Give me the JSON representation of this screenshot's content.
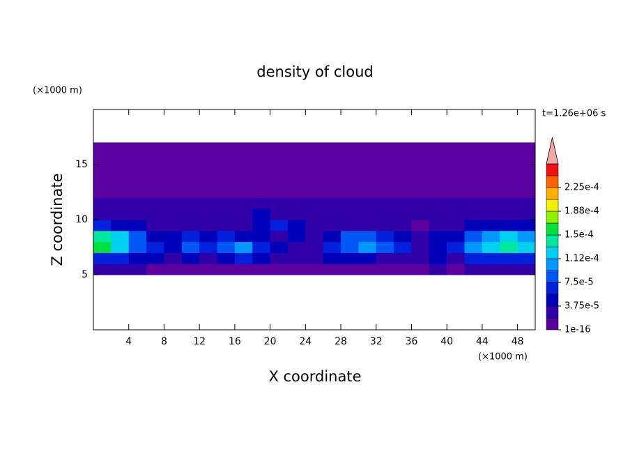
{
  "chart_data": {
    "type": "contour",
    "title": "density of cloud",
    "xlabel": "X coordinate",
    "ylabel": "Z coordinate",
    "x_unit": "(×1000 m)",
    "y_unit": "(×1000 m)",
    "annotation": "t=1.26e+06 s",
    "xlim": [
      0,
      50
    ],
    "ylim": [
      0,
      20
    ],
    "xticks": [
      4,
      8,
      12,
      16,
      20,
      24,
      28,
      32,
      36,
      40,
      44,
      48
    ],
    "yticks": [
      5,
      10,
      15
    ],
    "xbins": [
      0,
      2,
      4,
      6,
      8,
      10,
      12,
      14,
      16,
      18,
      20,
      22,
      24,
      26,
      28,
      30,
      32,
      34,
      36,
      38,
      40,
      42,
      44,
      46,
      48,
      50
    ],
    "zbins": [
      5,
      6,
      7,
      8,
      9,
      10,
      11,
      12,
      13,
      14,
      15,
      16,
      17
    ],
    "z": [
      [
        2e-05,
        2e-05,
        2e-05,
        1e-05,
        1e-05,
        1e-05,
        1e-05,
        1e-05,
        1e-05,
        1e-05,
        1e-05,
        1e-05,
        1e-05,
        1e-05,
        1e-05,
        1e-05,
        1e-05,
        1e-05,
        1e-05,
        2e-05,
        1e-05,
        2e-05,
        2e-05,
        2e-05,
        2e-05
      ],
      [
        7e-05,
        6e-05,
        5e-05,
        4e-05,
        3e-05,
        4e-05,
        3e-05,
        5e-05,
        6e-05,
        4e-05,
        3e-05,
        2e-05,
        2e-05,
        4e-05,
        5e-05,
        4e-05,
        3e-05,
        3e-05,
        2e-05,
        4e-05,
        3e-05,
        6e-05,
        7e-05,
        7e-05,
        7e-05
      ],
      [
        0.00015,
        0.00013,
        9e-05,
        6e-05,
        5e-05,
        8e-05,
        7e-05,
        9e-05,
        0.0001,
        6e-05,
        4e-05,
        3e-05,
        3e-05,
        7e-05,
        9e-05,
        0.0001,
        9e-05,
        6e-05,
        2e-05,
        5e-05,
        6e-05,
        0.0001,
        0.00013,
        0.00014,
        0.00012
      ],
      [
        0.00014,
        0.00012,
        8e-05,
        5e-05,
        4e-05,
        6e-05,
        5e-05,
        6e-05,
        5e-05,
        4e-05,
        3e-05,
        4e-05,
        3e-05,
        5e-05,
        8e-05,
        9e-05,
        7e-05,
        5e-05,
        2e-05,
        4e-05,
        5e-05,
        8e-05,
        0.00011,
        0.00012,
        0.0001
      ],
      [
        6e-05,
        5e-05,
        4e-05,
        3e-05,
        2e-05,
        2e-05,
        3e-05,
        2e-05,
        3e-05,
        5e-05,
        6e-05,
        4e-05,
        2e-05,
        3e-05,
        2e-05,
        3e-05,
        2e-05,
        2e-05,
        1e-05,
        2e-05,
        3e-05,
        4e-05,
        4e-05,
        5e-05,
        5e-05
      ],
      [
        3e-05,
        2e-05,
        2e-05,
        2e-05,
        2e-05,
        2e-05,
        2e-05,
        2e-05,
        2e-05,
        4e-05,
        3e-05,
        2e-05,
        2e-05,
        2e-05,
        2e-05,
        2e-05,
        2e-05,
        2e-05,
        2e-05,
        2e-05,
        2e-05,
        3e-05,
        2e-05,
        3e-05,
        3e-05
      ],
      [
        2e-05,
        2e-05,
        2e-05,
        2e-05,
        2e-05,
        2e-05,
        2e-05,
        2e-05,
        2e-05,
        2e-05,
        2e-05,
        2e-05,
        2e-05,
        2e-05,
        2e-05,
        2e-05,
        2e-05,
        2e-05,
        2e-05,
        2e-05,
        2e-05,
        2e-05,
        2e-05,
        2e-05,
        2e-05
      ],
      [
        5e-06,
        5e-06,
        5e-06,
        5e-06,
        5e-06,
        5e-06,
        5e-06,
        5e-06,
        5e-06,
        5e-06,
        5e-06,
        5e-06,
        5e-06,
        5e-06,
        5e-06,
        5e-06,
        5e-06,
        5e-06,
        5e-06,
        5e-06,
        5e-06,
        5e-06,
        5e-06,
        5e-06,
        5e-06
      ],
      [
        5e-06,
        5e-06,
        5e-06,
        5e-06,
        5e-06,
        5e-06,
        5e-06,
        5e-06,
        5e-06,
        5e-06,
        5e-06,
        5e-06,
        5e-06,
        5e-06,
        5e-06,
        5e-06,
        5e-06,
        5e-06,
        5e-06,
        5e-06,
        5e-06,
        5e-06,
        5e-06,
        5e-06,
        5e-06
      ],
      [
        5e-06,
        5e-06,
        5e-06,
        5e-06,
        5e-06,
        5e-06,
        5e-06,
        5e-06,
        5e-06,
        5e-06,
        5e-06,
        5e-06,
        5e-06,
        5e-06,
        5e-06,
        5e-06,
        5e-06,
        5e-06,
        5e-06,
        5e-06,
        5e-06,
        5e-06,
        5e-06,
        5e-06,
        5e-06
      ],
      [
        5e-06,
        5e-06,
        5e-06,
        5e-06,
        5e-06,
        5e-06,
        5e-06,
        5e-06,
        5e-06,
        5e-06,
        5e-06,
        5e-06,
        5e-06,
        5e-06,
        5e-06,
        5e-06,
        5e-06,
        5e-06,
        5e-06,
        5e-06,
        5e-06,
        5e-06,
        5e-06,
        5e-06,
        5e-06
      ],
      [
        5e-06,
        5e-06,
        5e-06,
        5e-06,
        5e-06,
        5e-06,
        5e-06,
        5e-06,
        5e-06,
        5e-06,
        5e-06,
        5e-06,
        5e-06,
        5e-06,
        5e-06,
        5e-06,
        5e-06,
        5e-06,
        5e-06,
        5e-06,
        5e-06,
        5e-06,
        5e-06,
        5e-06,
        5e-06
      ]
    ],
    "colorbar": {
      "levels": [
        1e-16,
        1.875e-05,
        3.75e-05,
        5.625e-05,
        7.5e-05,
        9.375e-05,
        0.0001125,
        0.00013125,
        0.00015,
        0.00016875,
        0.0001875,
        0.00020625,
        0.000225,
        0.00024375
      ],
      "colors": [
        "#5a009e",
        "#3000a8",
        "#0000b8",
        "#0020dc",
        "#0058f4",
        "#0098ff",
        "#00d0f0",
        "#00e8a0",
        "#00e040",
        "#90f000",
        "#f0f000",
        "#ffb000",
        "#ff6000",
        "#f01010"
      ],
      "extend_color": "#f4a8a8",
      "ticks": [
        {
          "value": 1e-16,
          "label": "1e-16"
        },
        {
          "value": 3.75e-05,
          "label": "3.75e-5"
        },
        {
          "value": 7.5e-05,
          "label": "7.5e-5"
        },
        {
          "value": 0.0001125,
          "label": "1.12e-4"
        },
        {
          "value": 0.00015,
          "label": "1.5e-4"
        },
        {
          "value": 0.0001875,
          "label": "1.88e-4"
        },
        {
          "value": 0.000225,
          "label": "2.25e-4"
        }
      ]
    }
  }
}
